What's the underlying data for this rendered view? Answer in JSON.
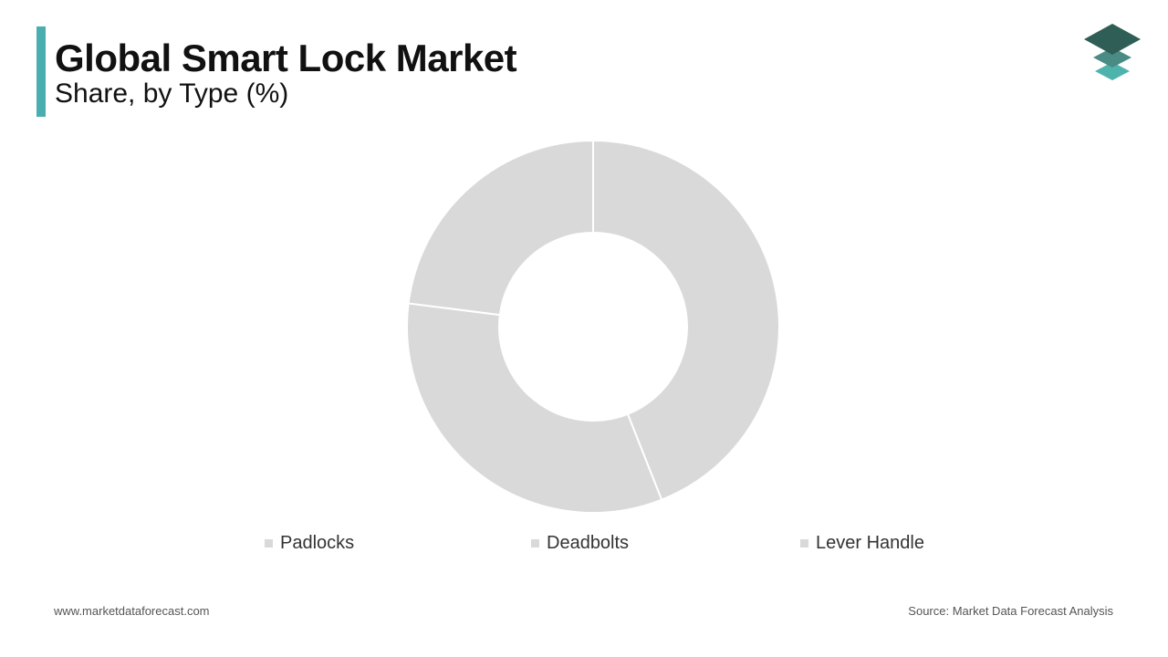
{
  "header": {
    "title": "Global Smart Lock Market",
    "subtitle": "Share, by Type (%)"
  },
  "footer": {
    "website": "www.marketdataforecast.com",
    "source": "Source: Market Data Forecast Analysis"
  },
  "colors": {
    "accent": "#4aaeb0",
    "slice": "#d9d9d9",
    "slice_border": "#ffffff",
    "logo_dark": "#2f5e56",
    "logo_mid": "#4a8c84",
    "logo_light": "#4fb3ad"
  },
  "icons": {
    "logo": "stacked-layers-icon"
  },
  "chart_data": {
    "type": "pie",
    "variant": "donut",
    "categories": [
      "Padlocks",
      "Deadbolts",
      "Lever Handle"
    ],
    "values": [
      44,
      33,
      23
    ],
    "value_unit": "%",
    "legend_position": "bottom"
  }
}
